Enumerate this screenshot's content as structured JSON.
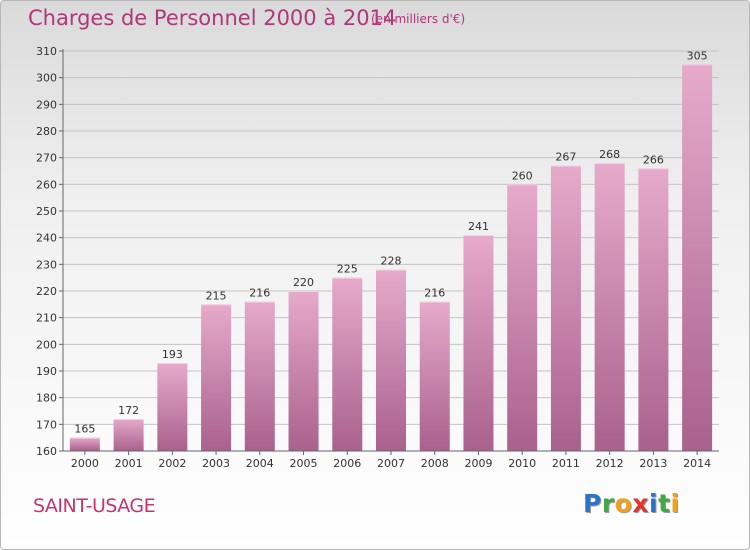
{
  "header": {
    "title": "Charges de Personnel 2000 à 2014",
    "subtitle": "(en milliers d'€)"
  },
  "footer": {
    "commune": "SAINT-USAGE",
    "logo": {
      "letters": [
        {
          "char": "P",
          "color": "#2a73c8"
        },
        {
          "char": "r",
          "color": "#43a843"
        },
        {
          "char": "o",
          "color": "#f0a21c"
        },
        {
          "char": "x",
          "color": "#e3342f"
        },
        {
          "char": "i",
          "color": "#2a73c8"
        },
        {
          "char": "t",
          "color": "#43a843"
        },
        {
          "char": "i",
          "color": "#f0a21c"
        }
      ]
    }
  },
  "colors": {
    "bar_top": "#e6aacb",
    "bar_bottom": "#a9618d",
    "text": "#333333",
    "accent": "#b03778"
  },
  "chart_data": {
    "type": "bar",
    "categories": [
      "2000",
      "2001",
      "2002",
      "2003",
      "2004",
      "2005",
      "2006",
      "2007",
      "2008",
      "2009",
      "2010",
      "2011",
      "2012",
      "2013",
      "2014"
    ],
    "values": [
      165,
      172,
      193,
      215,
      216,
      220,
      225,
      228,
      216,
      241,
      260,
      267,
      268,
      266,
      305
    ],
    "ylim": [
      160,
      310
    ],
    "yticks": [
      160,
      170,
      180,
      190,
      200,
      210,
      220,
      230,
      240,
      250,
      260,
      270,
      280,
      290,
      300,
      310
    ],
    "grid": true,
    "legend": "none"
  }
}
